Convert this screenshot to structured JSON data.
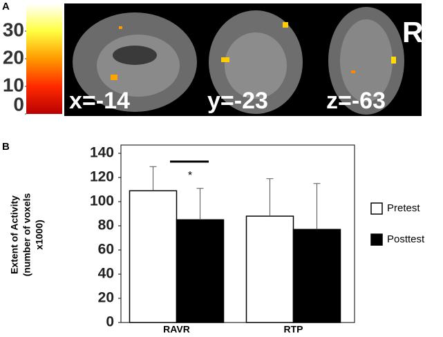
{
  "chart_data": [
    {
      "type": "heatmap",
      "panel_label": "A",
      "colorbar": {
        "clim": [
          0,
          40
        ],
        "ticks": [
          0,
          10,
          20,
          30
        ],
        "colors": [
          "#b80000",
          "#ff2a00",
          "#ff9a00",
          "#ffff40",
          "#ffffff"
        ]
      },
      "slice_labels": [
        "x=-14",
        "y=-23",
        "z=-63"
      ],
      "side_label": "R"
    },
    {
      "type": "bar",
      "panel_label": "B",
      "ylabel": [
        "Extent of Activity",
        "(number of voxels",
        "x1000)"
      ],
      "categories": [
        "RAVR",
        "RTP"
      ],
      "series": [
        {
          "name": "Pretest",
          "color": "#ffffff",
          "values": [
            109,
            88
          ],
          "errors": [
            20,
            31
          ]
        },
        {
          "name": "Posttest",
          "color": "#000000",
          "values": [
            85,
            77
          ],
          "errors": [
            26,
            38
          ]
        }
      ],
      "ylim": [
        0,
        140
      ],
      "yticks": [
        0,
        20,
        40,
        60,
        80,
        100,
        120,
        140
      ],
      "annotations": [
        {
          "text": "*"
        }
      ],
      "legend": "right"
    }
  ]
}
